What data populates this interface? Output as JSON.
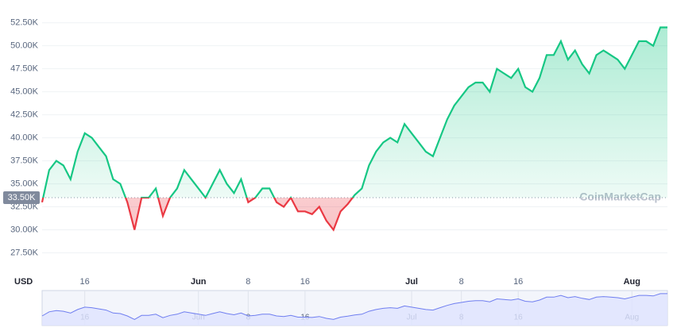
{
  "chart_data": {
    "type": "line",
    "currency": "USD",
    "watermark": "CoinMarketCap",
    "values": [
      33000,
      36500,
      37500,
      37000,
      35500,
      38500,
      40500,
      40000,
      39000,
      38000,
      35500,
      35000,
      33000,
      30000,
      33500,
      33500,
      34500,
      31500,
      33500,
      34500,
      36500,
      35500,
      34500,
      33500,
      35000,
      36500,
      35000,
      34000,
      35500,
      33000,
      33500,
      34500,
      34500,
      33000,
      32500,
      33500,
      32000,
      32000,
      31700,
      32500,
      31000,
      30000,
      32000,
      32800,
      33800,
      34500,
      37000,
      38500,
      39500,
      40000,
      39500,
      41500,
      40500,
      39500,
      38500,
      38000,
      40000,
      42000,
      43500,
      44500,
      45500,
      46000,
      46000,
      45000,
      47500,
      47000,
      46500,
      47500,
      45500,
      45000,
      46500,
      49000,
      49000,
      50500,
      48500,
      49500,
      48000,
      47000,
      49000,
      49500,
      49000,
      48500,
      47500,
      49000,
      50500,
      50500,
      50000,
      52000,
      52000
    ],
    "baseline": {
      "value": 33500,
      "label": "33.50K"
    },
    "color_up": "#16c784",
    "color_down": "#ea3943",
    "navigator_color": "#6f7ef0",
    "xlim": [
      0,
      88
    ],
    "xticks": [
      {
        "value": 6,
        "label": "16"
      },
      {
        "value": 22,
        "label": "Jun"
      },
      {
        "value": 29,
        "label": "8"
      },
      {
        "value": 37,
        "label": "16"
      },
      {
        "value": 52,
        "label": "Jul"
      },
      {
        "value": 59,
        "label": "8"
      },
      {
        "value": 67,
        "label": "16"
      },
      {
        "value": 83,
        "label": "Aug"
      }
    ],
    "ylim": [
      26250,
      53250
    ],
    "yticks": [
      {
        "value": 27500,
        "label": "27.50K"
      },
      {
        "value": 30000,
        "label": "30.00K"
      },
      {
        "value": 32500,
        "label": "32.50K"
      },
      {
        "value": 35000,
        "label": "35.00K"
      },
      {
        "value": 37500,
        "label": "37.50K"
      },
      {
        "value": 40000,
        "label": "40.00K"
      },
      {
        "value": 42500,
        "label": "42.50K"
      },
      {
        "value": 45000,
        "label": "45.00K"
      },
      {
        "value": 47500,
        "label": "47.50K"
      },
      {
        "value": 50000,
        "label": "50.00K"
      },
      {
        "value": 52500,
        "label": "52.50K"
      }
    ],
    "grid": true
  }
}
